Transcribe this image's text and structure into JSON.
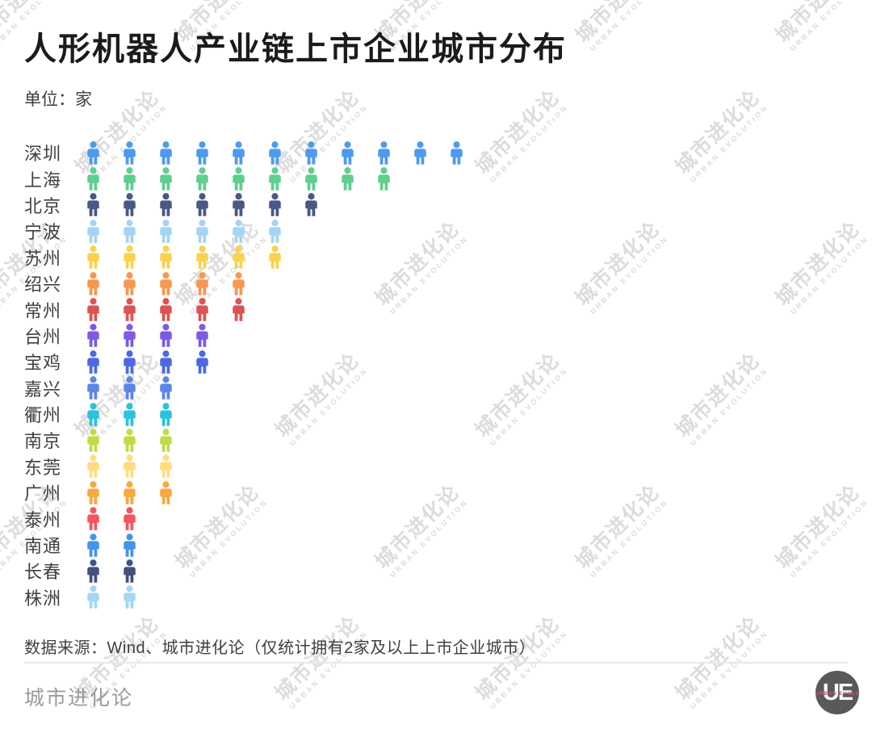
{
  "title": "人形机器人产业链上市企业城市分布",
  "unit_label": "单位：家",
  "source_note": "数据来源：Wind、城市进化论（仅统计拥有2家及以上上市企业城市）",
  "footer": {
    "brand": "城市进化论",
    "logo_text": "UE",
    "logo_subtext": "URBAN EVOLUTION"
  },
  "watermark": {
    "line1": "城市进化论",
    "line2": "URBAN EVOLUTION"
  },
  "chart_data": {
    "type": "pictogram_bar",
    "title": "人形机器人产业链上市企业城市分布",
    "unit": "家",
    "icon": "person-icon",
    "icon_value": 1,
    "legend_position": "none",
    "grid": false,
    "categories": [
      "深圳",
      "上海",
      "北京",
      "宁波",
      "苏州",
      "绍兴",
      "常州",
      "台州",
      "宝鸡",
      "嘉兴",
      "衢州",
      "南京",
      "东莞",
      "广州",
      "泰州",
      "南通",
      "长春",
      "株洲"
    ],
    "values": [
      11,
      9,
      7,
      6,
      6,
      5,
      5,
      4,
      4,
      3,
      3,
      3,
      3,
      3,
      2,
      2,
      2,
      2
    ],
    "colors": [
      "#4E9AF1",
      "#5FCE8F",
      "#4A5885",
      "#A4D4F5",
      "#FBD24E",
      "#F79750",
      "#DC5353",
      "#7B5BE6",
      "#4D68E3",
      "#5C85E8",
      "#2BC2DD",
      "#BFDC48",
      "#FFDC82",
      "#F6A93E",
      "#F2555F",
      "#4394EC",
      "#44517F",
      "#A6D5F6"
    ]
  }
}
